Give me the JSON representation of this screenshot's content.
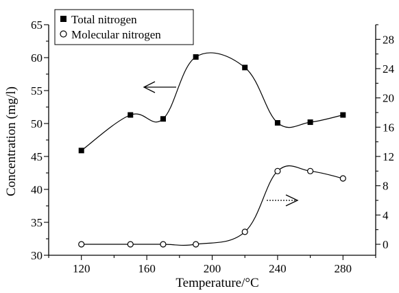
{
  "chart_data": {
    "type": "line",
    "title": "",
    "xlabel": "Temperature/°C",
    "ylabel_left": "Concentration (mg/l)",
    "ylabel_right": "",
    "xlim": [
      100,
      300
    ],
    "ylim_left": [
      30,
      65
    ],
    "ylim_right": [
      -1.5,
      30.0
    ],
    "x_ticks": [
      120,
      160,
      200,
      240,
      280
    ],
    "y_ticks_left": [
      30,
      35,
      40,
      45,
      50,
      55,
      60,
      65
    ],
    "y_ticks_right": [
      0,
      4,
      8,
      12,
      16,
      20,
      24,
      28
    ],
    "legend_position": "top-left",
    "grid": false,
    "series": [
      {
        "name": "Total nitrogen",
        "axis": "left",
        "marker": "filled-square",
        "x": [
          120,
          150,
          170,
          190,
          220,
          240,
          260,
          280
        ],
        "y": [
          45.9,
          51.3,
          50.7,
          60.1,
          58.5,
          50.1,
          50.2,
          51.3
        ]
      },
      {
        "name": "Molecular nitrogen",
        "axis": "right",
        "marker": "open-circle",
        "x": [
          120,
          150,
          170,
          190,
          220,
          240,
          260,
          280
        ],
        "y": [
          0.0,
          0.0,
          0.0,
          0.0,
          1.7,
          10.0,
          10.0,
          9.0
        ]
      }
    ]
  }
}
